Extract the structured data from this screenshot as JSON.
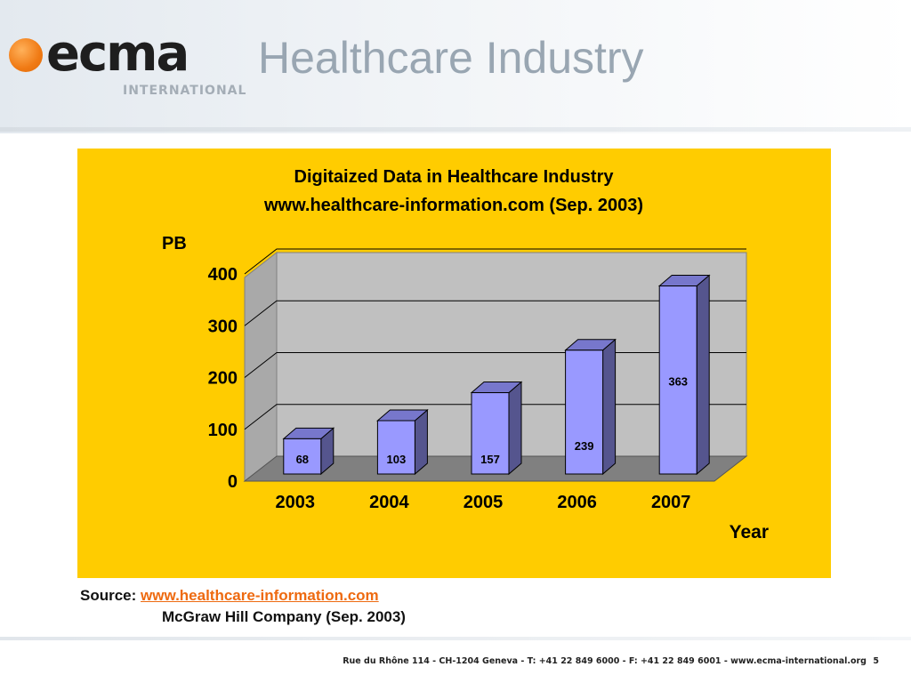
{
  "slide": {
    "title": "Healthcare Industry",
    "page_number": "5"
  },
  "logo": {
    "text": "ecma",
    "subtitle": "INTERNATIONAL",
    "accent_color": "#f07a14"
  },
  "source": {
    "label": "Source:",
    "link_text": "www.healthcare-information.com",
    "line2": "McGraw Hill Company (Sep. 2003)"
  },
  "footer": {
    "address": "Rue du Rhône 114 - CH-1204 Geneva - T: +41 22 849 6000 - F: +41 22 849 6001 - www.ecma-international.org"
  },
  "chart_data": {
    "type": "bar",
    "style": "3d-column",
    "title": "Digitaized Data in Healthcare Industry",
    "subtitle": "www.healthcare-information.com (Sep. 2003)",
    "ylabel": "PB",
    "xlabel": "Year",
    "categories": [
      "2003",
      "2004",
      "2005",
      "2006",
      "2007"
    ],
    "values": [
      68,
      103,
      157,
      239,
      363
    ],
    "ylim": [
      0,
      400
    ],
    "yticks": [
      0,
      100,
      200,
      300,
      400
    ],
    "grid": true,
    "legend": "none",
    "colors": {
      "panel_background": "#ffcc00",
      "plot_wall": "#c0c0c0",
      "bar_front": "#9999ff",
      "bar_top": "#7777cc",
      "bar_side": "#55558e"
    }
  }
}
